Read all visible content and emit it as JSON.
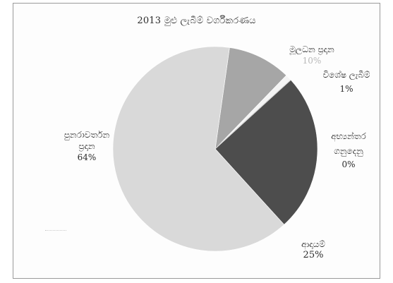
{
  "chart_data": {
    "type": "pie",
    "title": "2013 මුළු ලැබීම් වර්ගීකරණය",
    "slices": [
      {
        "label": "පුනරාවර්තන ප්‍රදාන",
        "value": 64,
        "value_label": "64%",
        "color": "#d9d9d9"
      },
      {
        "label": "මූලධන ප්‍රදාන",
        "value": 10,
        "value_label": "10%",
        "color": "#a6a6a6"
      },
      {
        "label": "විශේෂ ලැබීම්",
        "value": 1,
        "value_label": "1%",
        "color": "#f4f4f4"
      },
      {
        "label": "අභ්‍යන්තර ගනුදෙනු",
        "value": 0,
        "value_label": "0%",
        "color": "#7f7f7f"
      },
      {
        "label": "ආදායම්",
        "value": 25,
        "value_label": "25%",
        "color": "#4d4d4d"
      }
    ],
    "legend": "none (labels placed around pie)"
  }
}
